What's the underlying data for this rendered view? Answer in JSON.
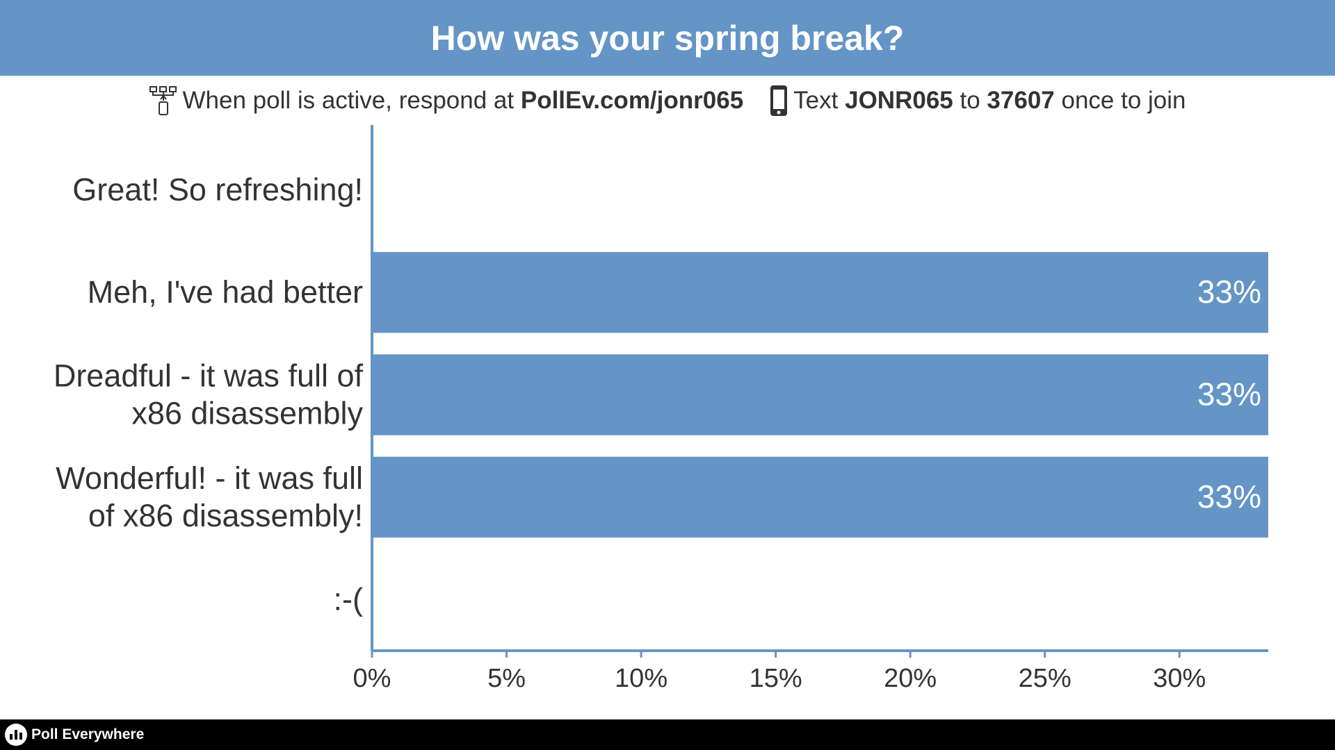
{
  "colors": {
    "header_bg": "#6495c6",
    "bar": "#6495c6",
    "axis": "#6495c6",
    "footer_bg": "#000000"
  },
  "title": "How was your spring break?",
  "instructions": {
    "web_prefix": "When poll is active, respond at",
    "web_url": "PollEv.com/jonr065",
    "text_prefix": "Text",
    "text_keyword": "JONR065",
    "text_to": "to",
    "text_number": "37607",
    "text_suffix": "once to join",
    "web_icon": "network-icon",
    "phone_icon": "phone-icon"
  },
  "footer": {
    "brand": "Poll Everywhere",
    "logo_icon": "poll-everywhere-logo-icon"
  },
  "chart_data": {
    "type": "bar",
    "orientation": "horizontal",
    "title": "How was your spring break?",
    "categories": [
      [
        "Great! So refreshing!"
      ],
      [
        "Meh, I've had better"
      ],
      [
        "Dreadful - it was full of",
        "x86 disassembly"
      ],
      [
        "Wonderful! - it was full",
        "of x86 disassembly!"
      ],
      [
        ":-("
      ]
    ],
    "values": [
      0,
      33.3,
      33.3,
      33.3,
      0
    ],
    "data_labels": [
      "",
      "33%",
      "33%",
      "33%",
      ""
    ],
    "x_ticks": [
      0,
      5,
      10,
      15,
      20,
      25,
      30
    ],
    "x_tick_labels": [
      "0%",
      "5%",
      "10%",
      "15%",
      "20%",
      "25%",
      "30%"
    ],
    "xlim": [
      0,
      33.3
    ],
    "xlabel": "",
    "ylabel": "",
    "grid": false,
    "legend": "none"
  }
}
